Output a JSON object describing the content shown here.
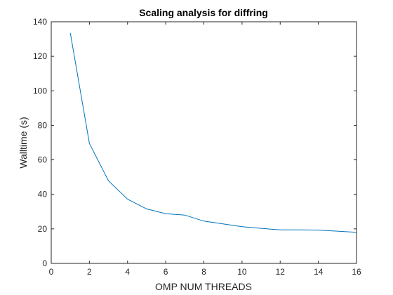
{
  "chart_data": {
    "type": "line",
    "title": "Scaling analysis for diffring",
    "xlabel": "OMP NUM THREADS",
    "ylabel": "Walltime (s)",
    "xlim": [
      0,
      16
    ],
    "ylim": [
      0,
      140
    ],
    "xticks": [
      0,
      2,
      4,
      6,
      8,
      10,
      12,
      14,
      16
    ],
    "yticks": [
      0,
      20,
      40,
      60,
      80,
      100,
      120,
      140
    ],
    "grid": false,
    "box": true,
    "series": [
      {
        "color": "#0072bd",
        "x": [
          1,
          2,
          3,
          4,
          5,
          6,
          7,
          8,
          9,
          10,
          11,
          12,
          13,
          14,
          15,
          16
        ],
        "y": [
          133.5,
          69.5,
          47.8,
          37.2,
          31.6,
          28.8,
          28.0,
          24.5,
          22.9,
          21.3,
          20.3,
          19.4,
          19.4,
          19.3,
          18.7,
          18.0
        ]
      }
    ]
  }
}
